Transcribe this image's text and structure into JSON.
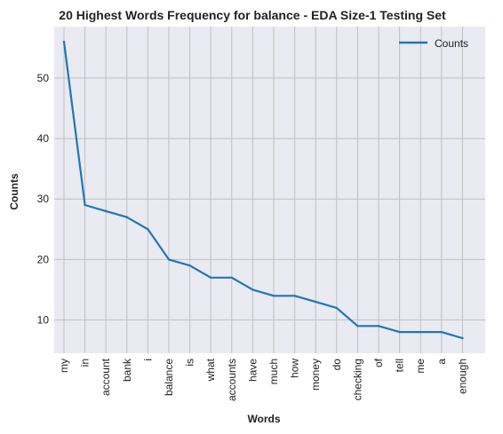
{
  "chart_data": {
    "type": "line",
    "title": "20 Highest Words Frequency for balance - EDA Size-1 Testing Set",
    "xlabel": "Words",
    "ylabel": "Counts",
    "categories": [
      "my",
      "in",
      "account",
      "bank",
      "i",
      "balance",
      "is",
      "what",
      "accounts",
      "have",
      "much",
      "how",
      "money",
      "do",
      "checking",
      "of",
      "tell",
      "me",
      "a",
      "enough"
    ],
    "series": [
      {
        "name": "Counts",
        "values": [
          56,
          29,
          28,
          27,
          25,
          20,
          19,
          17,
          17,
          15,
          14,
          14,
          13,
          12,
          9,
          9,
          8,
          8,
          8,
          7
        ],
        "color": "#1f77b4"
      }
    ],
    "yticks": [
      10,
      20,
      30,
      40,
      50
    ],
    "ylim": [
      4.5,
      58.5
    ],
    "grid": true,
    "legend_position": "top-right",
    "background_color": "#eaeaf2",
    "grid_color": "#c0c0c0"
  }
}
